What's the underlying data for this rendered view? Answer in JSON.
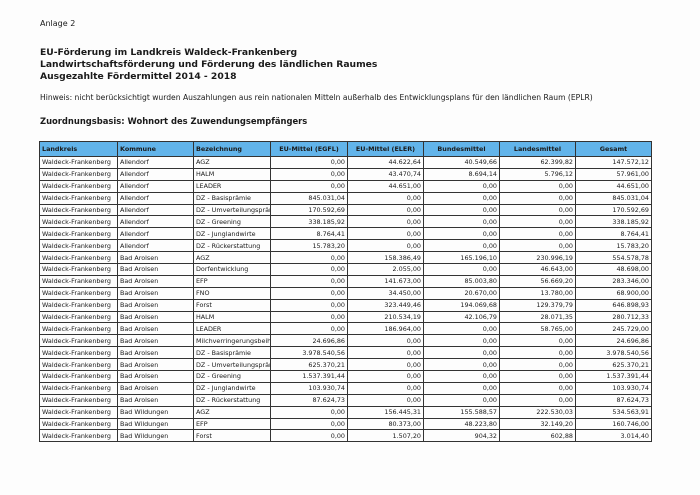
{
  "header": {
    "annex": "Anlage 2",
    "titles": [
      "EU-Förderung im Landkreis Waldeck-Frankenberg",
      "Landwirtschaftsförderung und Förderung des ländlichen Raumes",
      "Ausgezahlte Fördermittel 2014 - 2018"
    ],
    "note": "Hinweis: nicht berücksichtigt wurden Auszahlungen aus rein nationalen Mitteln außerhalb des Entwicklungsplans für den ländlichen Raum (EPLR)",
    "basis": "Zuordnungsbasis: Wohnort des Zuwendungsempfängers"
  },
  "table": {
    "columns": [
      "Landkreis",
      "Kommune",
      "Bezeichnung",
      "EU-Mittel (EGFL)",
      "EU-Mittel (ELER)",
      "Bundesmittel",
      "Landesmittel",
      "Gesamt"
    ],
    "rows": [
      [
        "Waldeck-Frankenberg",
        "Allendorf",
        "AGZ",
        "0,00",
        "44.622,64",
        "40.549,66",
        "62.399,82",
        "147.572,12"
      ],
      [
        "Waldeck-Frankenberg",
        "Allendorf",
        "HALM",
        "0,00",
        "43.470,74",
        "8.694,14",
        "5.796,12",
        "57.961,00"
      ],
      [
        "Waldeck-Frankenberg",
        "Allendorf",
        "LEADER",
        "0,00",
        "44.651,00",
        "0,00",
        "0,00",
        "44.651,00"
      ],
      [
        "Waldeck-Frankenberg",
        "Allendorf",
        "DZ - Basisprämie",
        "845.031,04",
        "0,00",
        "0,00",
        "0,00",
        "845.031,04"
      ],
      [
        "Waldeck-Frankenberg",
        "Allendorf",
        "DZ - Umverteilungsprämie",
        "170.592,69",
        "0,00",
        "0,00",
        "0,00",
        "170.592,69"
      ],
      [
        "Waldeck-Frankenberg",
        "Allendorf",
        "DZ - Greening",
        "338.185,92",
        "0,00",
        "0,00",
        "0,00",
        "338.185,92"
      ],
      [
        "Waldeck-Frankenberg",
        "Allendorf",
        "DZ - Junglandwirte",
        "8.764,41",
        "0,00",
        "0,00",
        "0,00",
        "8.764,41"
      ],
      [
        "Waldeck-Frankenberg",
        "Allendorf",
        "DZ - Rückerstattung",
        "15.783,20",
        "0,00",
        "0,00",
        "0,00",
        "15.783,20"
      ],
      [
        "Waldeck-Frankenberg",
        "Bad Arolsen",
        "AGZ",
        "0,00",
        "158.386,49",
        "165.196,10",
        "230.996,19",
        "554.578,78"
      ],
      [
        "Waldeck-Frankenberg",
        "Bad Arolsen",
        "Dorfentwicklung",
        "0,00",
        "2.055,00",
        "0,00",
        "46.643,00",
        "48.698,00"
      ],
      [
        "Waldeck-Frankenberg",
        "Bad Arolsen",
        "EFP",
        "0,00",
        "141.673,00",
        "85.003,80",
        "56.669,20",
        "283.346,00"
      ],
      [
        "Waldeck-Frankenberg",
        "Bad Arolsen",
        "FNO",
        "0,00",
        "34.450,00",
        "20.670,00",
        "13.780,00",
        "68.900,00"
      ],
      [
        "Waldeck-Frankenberg",
        "Bad Arolsen",
        "Forst",
        "0,00",
        "323.449,46",
        "194.069,68",
        "129.379,79",
        "646.898,93"
      ],
      [
        "Waldeck-Frankenberg",
        "Bad Arolsen",
        "HALM",
        "0,00",
        "210.534,19",
        "42.106,79",
        "28.071,35",
        "280.712,33"
      ],
      [
        "Waldeck-Frankenberg",
        "Bad Arolsen",
        "LEADER",
        "0,00",
        "186.964,00",
        "0,00",
        "58.765,00",
        "245.729,00"
      ],
      [
        "Waldeck-Frankenberg",
        "Bad Arolsen",
        "Milchverringerungsbeihilfe",
        "24.696,86",
        "0,00",
        "0,00",
        "0,00",
        "24.696,86"
      ],
      [
        "Waldeck-Frankenberg",
        "Bad Arolsen",
        "DZ - Basisprämie",
        "3.978.540,56",
        "0,00",
        "0,00",
        "0,00",
        "3.978.540,56"
      ],
      [
        "Waldeck-Frankenberg",
        "Bad Arolsen",
        "DZ - Umverteilungsprämie",
        "625.370,21",
        "0,00",
        "0,00",
        "0,00",
        "625.370,21"
      ],
      [
        "Waldeck-Frankenberg",
        "Bad Arolsen",
        "DZ - Greening",
        "1.537.391,44",
        "0,00",
        "0,00",
        "0,00",
        "1.537.391,44"
      ],
      [
        "Waldeck-Frankenberg",
        "Bad Arolsen",
        "DZ - Junglandwirte",
        "103.930,74",
        "0,00",
        "0,00",
        "0,00",
        "103.930,74"
      ],
      [
        "Waldeck-Frankenberg",
        "Bad Arolsen",
        "DZ - Rückerstattung",
        "87.624,73",
        "0,00",
        "0,00",
        "0,00",
        "87.624,73"
      ],
      [
        "Waldeck-Frankenberg",
        "Bad Wildungen",
        "AGZ",
        "0,00",
        "156.445,31",
        "155.588,57",
        "222.530,03",
        "534.563,91"
      ],
      [
        "Waldeck-Frankenberg",
        "Bad Wildungen",
        "EFP",
        "0,00",
        "80.373,00",
        "48.223,80",
        "32.149,20",
        "160.746,00"
      ],
      [
        "Waldeck-Frankenberg",
        "Bad Wildungen",
        "Forst",
        "0,00",
        "1.507,20",
        "904,32",
        "602,88",
        "3.014,40"
      ]
    ]
  },
  "colors": {
    "header_bg": "#62b4ea"
  }
}
